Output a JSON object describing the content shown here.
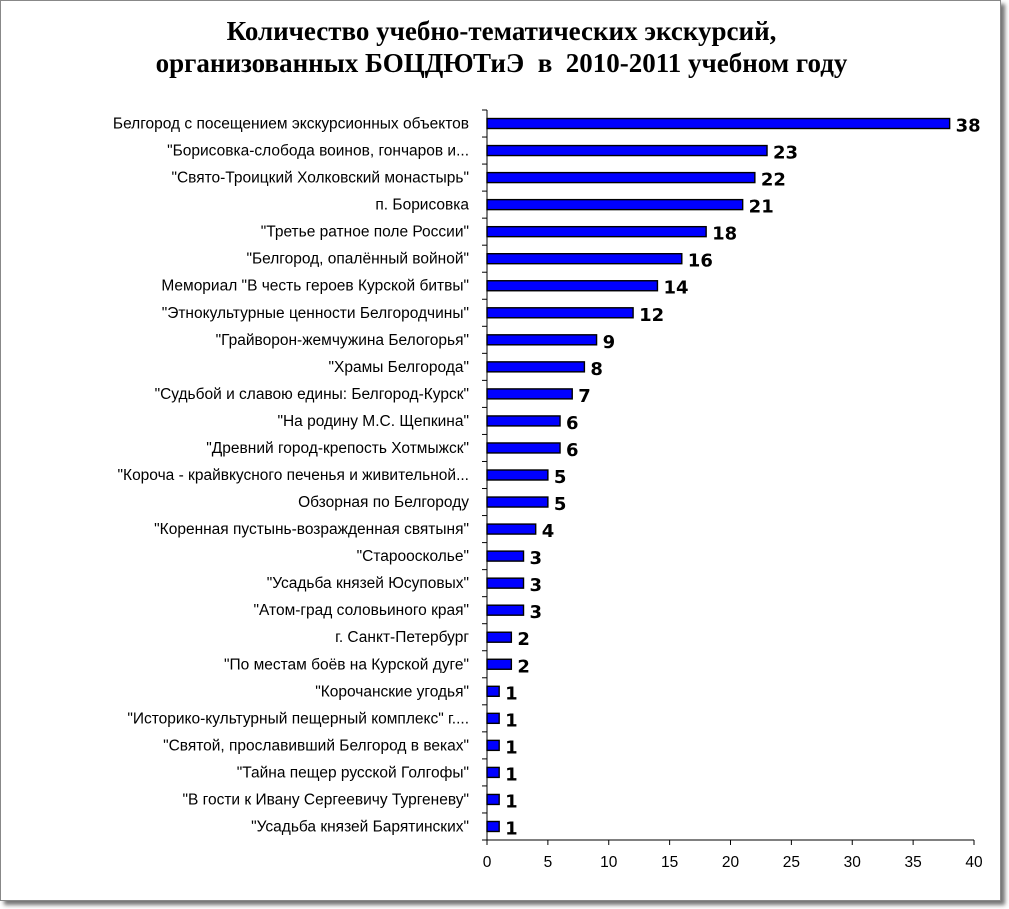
{
  "chart_data": {
    "type": "bar",
    "orientation": "horizontal",
    "title_line1": "Количество учебно-тематических экскурсий,",
    "title_line2": "организованных БОЦДЮТиЭ  в  2010-2011 учебном году",
    "categories": [
      "Белгород с посещением экскурсионных объектов",
      "\"Борисовка-слобода воинов, гончаров и...",
      "\"Свято-Троицкий Холковский монастырь\"",
      "п. Борисовка",
      "\"Третье ратное поле России\"",
      "\"Белгород, опалённый войной\"",
      "Мемориал \"В честь героев Курской битвы\"",
      "\"Этнокультурные ценности Белгородчины\"",
      "\"Грайворон-жемчужина Белогорья\"",
      "\"Храмы Белгорода\"",
      "\"Судьбой и славою едины: Белгород-Курск\"",
      "\"На родину М.С. Щепкина\"",
      "\"Древний город-крепость Хотмыжск\"",
      "\"Короча - крайвкусного печенья и живительной...",
      "Обзорная по Белгороду",
      "\"Коренная пустынь-возражденная святыня\"",
      "\"Старооскольe\"",
      "\"Усадьба князей Юсуповых\"",
      "\"Атом-град соловьиного края\"",
      "г. Санкт-Петербург",
      "\"По местам боёв на Курской дуге\"",
      "\"Корочанские угодья\"",
      "\"Историко-культурный пещерный комплекс\" г....",
      "\"Святой, прославивший Белгород в веках\"",
      "\"Тайна пещер русской Голгофы\"",
      "\"В гости к Ивану Сергеевичу Тургеневу\"",
      "\"Усадьба князей Барятинских\""
    ],
    "values": [
      38,
      23,
      22,
      21,
      18,
      16,
      14,
      12,
      9,
      8,
      7,
      6,
      6,
      5,
      5,
      4,
      3,
      3,
      3,
      2,
      2,
      1,
      1,
      1,
      1,
      1,
      1
    ],
    "xlim": [
      0,
      40
    ],
    "xticks": [
      0,
      5,
      10,
      15,
      20,
      25,
      30,
      35,
      40
    ],
    "grid": false,
    "legend": "none",
    "bar_color": "#0000FF",
    "bar_edge_color": "#000000",
    "data_labels": true
  }
}
